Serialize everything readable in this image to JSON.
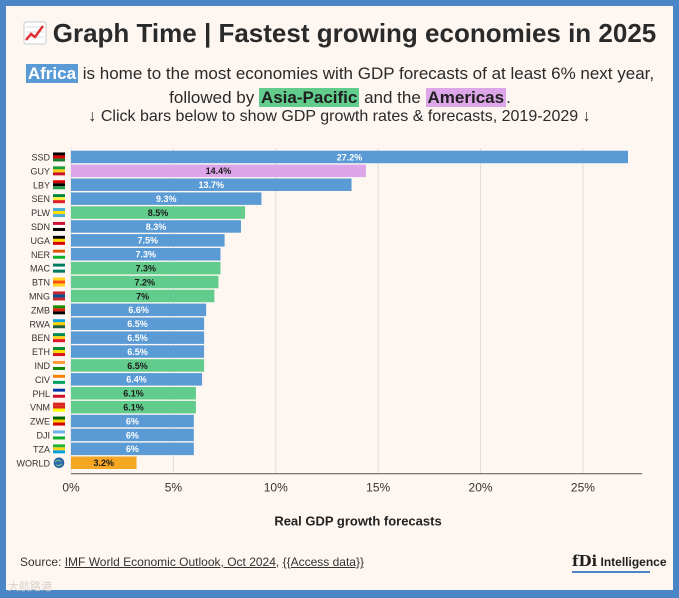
{
  "header": {
    "title": "Graph Time | Fastest growing economies in 2025",
    "subtitle_parts": {
      "africa": "Africa",
      "text1": " is home to the most economies with GDP forecasts of at least 6% next year, followed by ",
      "asia": "Asia-Pacific",
      "text2": " and the ",
      "americas": "Americas",
      "text3": "."
    },
    "instruction": "↓ Click bars below to show GDP growth rates & forecasts, 2019-2029 ↓"
  },
  "footer": {
    "source_label": "Source: ",
    "source_link": "IMF World Economic Outlook, Oct 2024",
    "separator": ", ",
    "access_link": "{{Access data}}",
    "brand_fdi": "fDi",
    "brand_name": " Intelligence",
    "watermark": "大航路港"
  },
  "colors": {
    "africa": "#5b9bd5",
    "asia": "#62cc8c",
    "americas": "#dca6e9",
    "world": "#f5a623",
    "border": "#4a86c5"
  },
  "chart_data": {
    "type": "bar",
    "orientation": "horizontal",
    "xlabel": "Real GDP growth forecasts",
    "ylabel": "",
    "xlim": [
      0,
      27.2
    ],
    "xticks": [
      0,
      5,
      10,
      15,
      20,
      25
    ],
    "xtick_labels": [
      "0%",
      "5%",
      "10%",
      "15%",
      "20%",
      "25%"
    ],
    "grid": "vertical",
    "categories": [
      "SSD",
      "GUY",
      "LBY",
      "SEN",
      "PLW",
      "SDN",
      "UGA",
      "NER",
      "MAC",
      "BTN",
      "MNG",
      "ZMB",
      "RWA",
      "BEN",
      "ETH",
      "IND",
      "CIV",
      "PHL",
      "VNM",
      "ZWE",
      "DJI",
      "TZA",
      "WORLD"
    ],
    "values": [
      27.2,
      14.4,
      13.7,
      9.3,
      8.5,
      8.3,
      7.5,
      7.3,
      7.3,
      7.2,
      7.0,
      6.6,
      6.5,
      6.5,
      6.5,
      6.5,
      6.4,
      6.1,
      6.1,
      6.0,
      6.0,
      6.0,
      3.2
    ],
    "labels": [
      "27.2%",
      "14.4%",
      "13.7%",
      "9.3%",
      "8.5%",
      "8.3%",
      "7.5%",
      "7.3%",
      "7.3%",
      "7.2%",
      "7%",
      "6.6%",
      "6.5%",
      "6.5%",
      "6.5%",
      "6.5%",
      "6.4%",
      "6.1%",
      "6.1%",
      "6%",
      "6%",
      "6%",
      "3.2%"
    ],
    "regions": [
      "africa",
      "americas",
      "africa",
      "africa",
      "asia",
      "africa",
      "africa",
      "africa",
      "asia",
      "asia",
      "asia",
      "africa",
      "africa",
      "africa",
      "africa",
      "asia",
      "africa",
      "asia",
      "asia",
      "africa",
      "africa",
      "africa",
      "world"
    ]
  }
}
